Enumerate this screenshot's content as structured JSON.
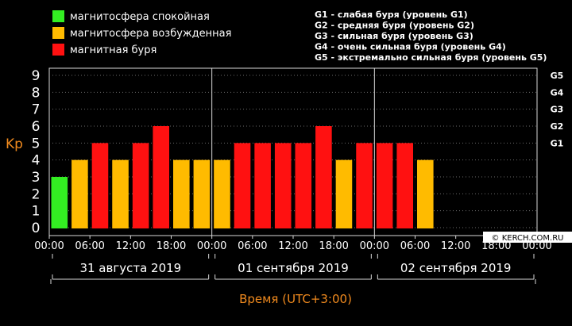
{
  "chart_data": {
    "type": "bar",
    "ylabel": "Kp",
    "xlabel": "Время (UTC+3:00)",
    "ylim": [
      0,
      9
    ],
    "yticks": [
      "0",
      "1",
      "2",
      "3",
      "4",
      "5",
      "6",
      "7",
      "8",
      "9"
    ],
    "x_tick_labels": [
      "00:00",
      "06:00",
      "12:00",
      "18:00",
      "00:00",
      "06:00",
      "12:00",
      "18:00",
      "00:00",
      "06:00",
      "12:00",
      "18:00",
      "00:00"
    ],
    "days": [
      "31 августа 2019",
      "01 сентября 2019",
      "02 сентября 2019"
    ],
    "interval_hours": 3,
    "values": [
      3,
      4,
      5,
      4,
      5,
      6,
      4,
      4,
      4,
      5,
      5,
      5,
      5,
      6,
      4,
      5,
      5,
      5,
      4
    ],
    "levels": [
      "quiet",
      "active",
      "storm",
      "active",
      "storm",
      "storm",
      "active",
      "active",
      "active",
      "storm",
      "storm",
      "storm",
      "storm",
      "storm",
      "active",
      "storm",
      "storm",
      "storm",
      "active"
    ],
    "colors": {
      "quiet": "#33ee22",
      "active": "#ffbb00",
      "storm": "#ff1111"
    },
    "legend": [
      {
        "label": "магнитосфера спокойная",
        "level": "quiet"
      },
      {
        "label": "магнитосфера возбужденная",
        "level": "active"
      },
      {
        "label": "магнитная буря",
        "level": "storm"
      }
    ],
    "g_scale": [
      {
        "label": "G1",
        "kp": 5
      },
      {
        "label": "G2",
        "kp": 6
      },
      {
        "label": "G3",
        "kp": 7
      },
      {
        "label": "G4",
        "kp": 8
      },
      {
        "label": "G5",
        "kp": 9
      }
    ],
    "g_descriptions": [
      "G1 - слабая буря (уровень G1)",
      "G2 - средняя буря (уровень G2)",
      "G3 - сильная буря (уровень G3)",
      "G4 - очень сильная буря (уровень G4)",
      "G5 - экстремально сильная буря (уровень G5)"
    ],
    "grid": true
  },
  "watermark": "© KERCH.COM.RU"
}
